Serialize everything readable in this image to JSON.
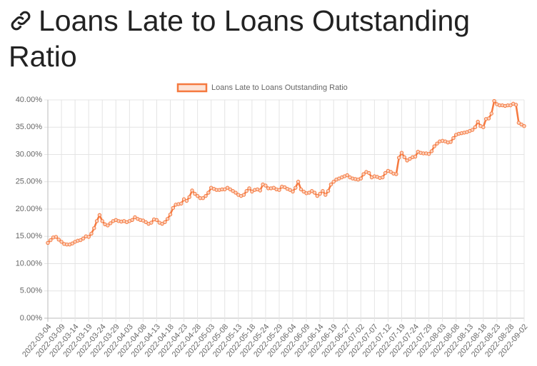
{
  "title": "Loans Late to Loans Outstanding Ratio",
  "chart_data": {
    "type": "line",
    "categories": [
      "2022-03-04",
      null,
      null,
      null,
      null,
      "2022-03-09",
      null,
      null,
      null,
      null,
      "2022-03-14",
      null,
      null,
      null,
      null,
      "2022-03-19",
      null,
      null,
      null,
      null,
      "2022-03-24",
      null,
      null,
      null,
      null,
      "2022-03-29",
      null,
      null,
      null,
      null,
      "2022-04-03",
      null,
      null,
      null,
      null,
      "2022-04-08",
      null,
      null,
      null,
      null,
      "2022-04-13",
      null,
      null,
      null,
      null,
      "2022-04-18",
      null,
      null,
      null,
      null,
      "2022-04-23",
      null,
      null,
      null,
      null,
      "2022-04-28",
      null,
      null,
      null,
      null,
      "2022-05-03",
      null,
      null,
      null,
      null,
      "2022-05-08",
      null,
      null,
      null,
      null,
      "2022-05-13",
      null,
      null,
      null,
      null,
      "2022-05-18",
      null,
      null,
      null,
      null,
      "2022-05-24",
      null,
      null,
      null,
      null,
      "2022-05-29",
      null,
      null,
      null,
      null,
      "2022-06-04",
      null,
      null,
      null,
      null,
      "2022-06-09",
      null,
      null,
      null,
      null,
      "2022-06-14",
      null,
      null,
      null,
      null,
      "2022-06-19",
      null,
      null,
      null,
      null,
      "2022-06-27",
      null,
      null,
      null,
      null,
      "2022-07-02",
      null,
      null,
      null,
      null,
      "2022-07-07",
      null,
      null,
      null,
      null,
      "2022-07-12",
      null,
      null,
      null,
      null,
      "2022-07-19",
      null,
      null,
      null,
      null,
      "2022-07-24",
      null,
      null,
      null,
      null,
      "2022-07-29",
      null,
      null,
      null,
      null,
      "2022-08-03",
      null,
      null,
      null,
      null,
      "2022-08-08",
      null,
      null,
      null,
      null,
      "2022-08-13",
      null,
      null,
      null,
      null,
      "2022-08-18",
      null,
      null,
      null,
      null,
      "2022-08-23",
      null,
      null,
      null,
      null,
      "2022-08-28",
      null,
      null,
      null,
      null,
      "2022-09-02"
    ],
    "series": [
      {
        "name": "Loans Late to Loans Outstanding Ratio",
        "color": "#f5793f",
        "values": [
          13.8,
          14.3,
          14.8,
          14.9,
          14.4,
          14.0,
          13.6,
          13.5,
          13.5,
          13.7,
          14.0,
          14.2,
          14.3,
          14.6,
          15.0,
          14.9,
          15.5,
          16.5,
          17.8,
          18.9,
          17.8,
          17.2,
          17.0,
          17.4,
          17.8,
          18.0,
          17.8,
          17.7,
          17.8,
          17.6,
          17.8,
          18.0,
          18.5,
          18.2,
          18.0,
          17.9,
          17.6,
          17.3,
          17.5,
          18.1,
          18.0,
          17.5,
          17.3,
          17.6,
          18.2,
          19.0,
          20.2,
          20.8,
          20.9,
          21.0,
          21.8,
          21.5,
          22.2,
          23.4,
          22.8,
          22.4,
          22.0,
          22.0,
          22.4,
          23.0,
          23.9,
          23.7,
          23.5,
          23.5,
          23.6,
          23.6,
          23.9,
          23.6,
          23.3,
          23.0,
          22.6,
          22.4,
          22.6,
          23.3,
          23.8,
          23.2,
          23.5,
          23.6,
          23.4,
          24.5,
          24.3,
          23.8,
          23.8,
          23.9,
          23.6,
          23.5,
          24.1,
          24.0,
          23.7,
          23.5,
          23.2,
          23.9,
          25.0,
          23.6,
          23.2,
          22.9,
          23.0,
          23.3,
          23.0,
          22.4,
          22.8,
          23.3,
          22.6,
          23.3,
          24.5,
          25.0,
          25.4,
          25.6,
          25.8,
          26.0,
          26.2,
          25.8,
          25.6,
          25.5,
          25.4,
          25.6,
          26.4,
          26.8,
          26.6,
          25.8,
          26.0,
          25.9,
          25.7,
          25.8,
          26.6,
          27.0,
          26.8,
          26.5,
          26.4,
          29.4,
          30.3,
          29.5,
          28.9,
          29.2,
          29.5,
          29.6,
          30.5,
          30.3,
          30.2,
          30.2,
          30.1,
          30.6,
          31.5,
          32.0,
          32.4,
          32.5,
          32.4,
          32.2,
          32.3,
          33.0,
          33.6,
          33.8,
          33.9,
          34.0,
          34.1,
          34.3,
          34.5,
          35.0,
          36.0,
          35.2,
          35.0,
          36.5,
          36.6,
          37.5,
          39.8,
          39.2,
          39.0,
          39.0,
          38.9,
          39.0,
          39.0,
          39.3,
          39.1,
          35.8,
          35.5,
          35.2
        ]
      }
    ],
    "ylim": [
      0,
      40
    ],
    "yticks": [
      {
        "value": 0,
        "label": "0.00%"
      },
      {
        "value": 5,
        "label": "5.00%"
      },
      {
        "value": 10,
        "label": "10.00%"
      },
      {
        "value": 15,
        "label": "15.00%"
      },
      {
        "value": 20,
        "label": "20.00%"
      },
      {
        "value": 25,
        "label": "25.00%"
      },
      {
        "value": 30,
        "label": "30.00%"
      },
      {
        "value": 35,
        "label": "35.00%"
      },
      {
        "value": 40,
        "label": "40.00%"
      }
    ],
    "grid": true,
    "legend": "top"
  }
}
